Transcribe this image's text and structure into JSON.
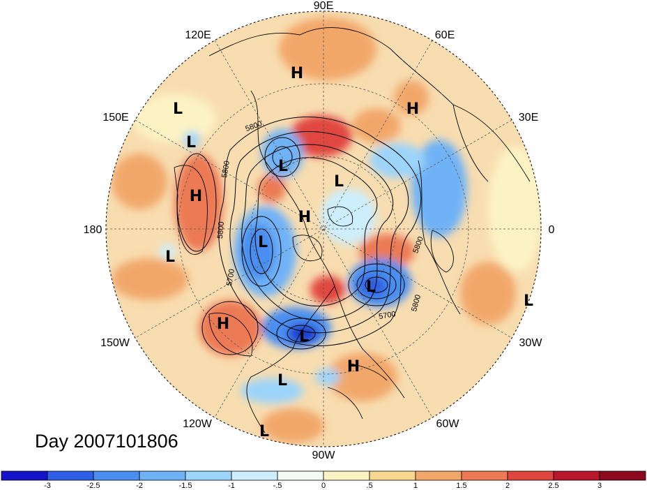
{
  "title": "Day 2007101806",
  "longitude_labels": [
    {
      "id": "lon-90e",
      "text": "90E"
    },
    {
      "id": "lon-60e",
      "text": "60E"
    },
    {
      "id": "lon-120e",
      "text": "120E"
    },
    {
      "id": "lon-30e",
      "text": "30E"
    },
    {
      "id": "lon-150e",
      "text": "150E"
    },
    {
      "id": "lon-180",
      "text": "180"
    },
    {
      "id": "lon-0",
      "text": "0"
    },
    {
      "id": "lon-150w",
      "text": "150W"
    },
    {
      "id": "lon-30w",
      "text": "30W"
    },
    {
      "id": "lon-120w",
      "text": "120W"
    },
    {
      "id": "lon-60w",
      "text": "60W"
    },
    {
      "id": "lon-90w",
      "text": "90W"
    }
  ],
  "pressure_centers": [
    {
      "id": "h1",
      "text": "H"
    },
    {
      "id": "h2",
      "text": "H"
    },
    {
      "id": "l1",
      "text": "L"
    },
    {
      "id": "l2",
      "text": "L"
    },
    {
      "id": "h3",
      "text": "H"
    },
    {
      "id": "l3",
      "text": "L"
    },
    {
      "id": "l4",
      "text": "L"
    },
    {
      "id": "h4",
      "text": "H"
    },
    {
      "id": "l5",
      "text": "L"
    },
    {
      "id": "l6",
      "text": "L"
    },
    {
      "id": "l7",
      "text": "L"
    },
    {
      "id": "l8",
      "text": "L"
    },
    {
      "id": "h5",
      "text": "H"
    },
    {
      "id": "l9",
      "text": "L"
    },
    {
      "id": "h6",
      "text": "H"
    },
    {
      "id": "l10",
      "text": "L"
    },
    {
      "id": "l11",
      "text": "L"
    }
  ],
  "contour_labels": [
    {
      "id": "c1",
      "text": "5800"
    },
    {
      "id": "c2",
      "text": "5800"
    },
    {
      "id": "c3",
      "text": "5800"
    },
    {
      "id": "c4",
      "text": "5700"
    },
    {
      "id": "c5",
      "text": "5800"
    },
    {
      "id": "c6",
      "text": "5700"
    },
    {
      "id": "c7",
      "text": "5800"
    }
  ],
  "colorbar": {
    "ticks": [
      "-3",
      "-2.5",
      "-2",
      "-1.5",
      "-1",
      "-.5",
      "0",
      ".5",
      "1",
      "1.5",
      "2",
      "2.5",
      "3"
    ],
    "colors": [
      "#1414c8",
      "#2e5fe6",
      "#4a8ef0",
      "#6fb2f6",
      "#9cd4fa",
      "#cdeefc",
      "#f3f9f4",
      "#fcf3c4",
      "#f8d890",
      "#f2a76a",
      "#ec7a55",
      "#e04640",
      "#b8162a",
      "#8c0a1e"
    ]
  },
  "colors": {
    "ocean_base": "#f8ddb0",
    "warm": "#f2a76a",
    "warm_strong": "#ec7a55",
    "cold": "#9cd4fa",
    "cold_strong": "#4a8ef0",
    "cold_deep": "#1e3cd0"
  }
}
